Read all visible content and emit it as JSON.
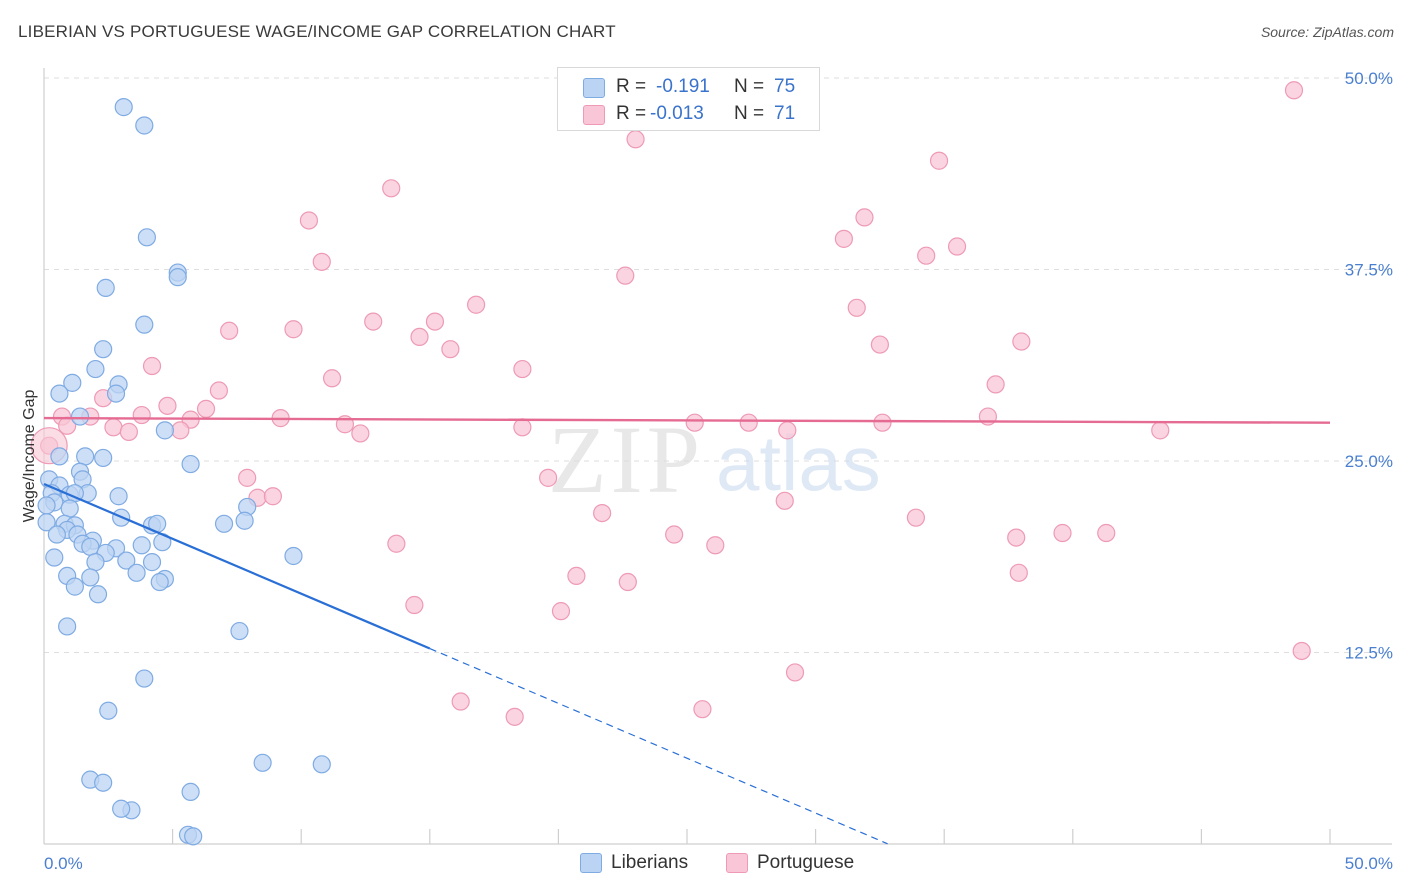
{
  "title": "LIBERIAN VS PORTUGUESE WAGE/INCOME GAP CORRELATION CHART",
  "source": "Source: ZipAtlas.com",
  "watermark": {
    "zip": "ZIP",
    "atlas": "atlas"
  },
  "legend": {
    "r_label": "R =",
    "n_label": "N =",
    "liberians": {
      "r": "-0.191",
      "n": "75"
    },
    "portuguese": {
      "r": "-0.013",
      "n": "71"
    }
  },
  "bottom_legend": {
    "liberians": "Liberians",
    "portuguese": "Portuguese"
  },
  "colors": {
    "liberians_fill": "#bcd4f3",
    "liberians_stroke": "#7fabe3",
    "liberians_line": "#2a6fd6",
    "portuguese_fill": "#f8c6d6",
    "portuguese_stroke": "#ee9ab5",
    "portuguese_line": "#e56b93",
    "tick_text": "#4a7fcf",
    "grid": "#dedede"
  },
  "chart_data": {
    "type": "scatter",
    "title": "LIBERIAN VS PORTUGUESE WAGE/INCOME GAP CORRELATION CHART",
    "xlabel": "",
    "ylabel": "Wage/Income Gap",
    "xlim": [
      0,
      50
    ],
    "ylim": [
      0,
      50
    ],
    "x_tick_labels": [
      "0.0%",
      "50.0%"
    ],
    "y_ticks": [
      12.5,
      25.0,
      37.5,
      50.0
    ],
    "y_tick_labels": [
      "12.5%",
      "25.0%",
      "37.5%",
      "50.0%"
    ],
    "grid": true,
    "series": [
      {
        "name": "Liberians",
        "r": -0.191,
        "n": 75,
        "trend": {
          "x0": 0,
          "y0": 23.5,
          "x_solid_end": 15,
          "x_end": 32.8,
          "slope": -0.716
        },
        "points": [
          [
            3.1,
            48.1
          ],
          [
            3.9,
            46.9
          ],
          [
            4.0,
            39.6
          ],
          [
            5.2,
            37.3
          ],
          [
            5.2,
            37.0
          ],
          [
            2.4,
            36.3
          ],
          [
            3.9,
            33.9
          ],
          [
            2.3,
            32.3
          ],
          [
            2.0,
            31.0
          ],
          [
            1.1,
            30.1
          ],
          [
            2.9,
            30.0
          ],
          [
            2.8,
            29.4
          ],
          [
            0.6,
            29.4
          ],
          [
            1.4,
            27.9
          ],
          [
            4.7,
            27.0
          ],
          [
            0.6,
            25.3
          ],
          [
            1.6,
            25.3
          ],
          [
            2.3,
            25.2
          ],
          [
            5.7,
            24.8
          ],
          [
            1.4,
            24.3
          ],
          [
            1.5,
            23.8
          ],
          [
            0.2,
            23.8
          ],
          [
            0.6,
            23.4
          ],
          [
            0.3,
            22.9
          ],
          [
            1.7,
            22.9
          ],
          [
            1.0,
            22.8
          ],
          [
            1.2,
            22.9
          ],
          [
            2.9,
            22.7
          ],
          [
            0.4,
            22.3
          ],
          [
            0.1,
            22.1
          ],
          [
            1.0,
            21.9
          ],
          [
            7.9,
            22.0
          ],
          [
            3.0,
            21.3
          ],
          [
            7.8,
            21.1
          ],
          [
            0.1,
            21.0
          ],
          [
            0.8,
            20.9
          ],
          [
            1.2,
            20.8
          ],
          [
            7.0,
            20.9
          ],
          [
            4.2,
            20.8
          ],
          [
            4.4,
            20.9
          ],
          [
            0.9,
            20.5
          ],
          [
            0.5,
            20.2
          ],
          [
            1.3,
            20.2
          ],
          [
            1.9,
            19.8
          ],
          [
            1.5,
            19.6
          ],
          [
            1.8,
            19.4
          ],
          [
            4.6,
            19.7
          ],
          [
            3.8,
            19.5
          ],
          [
            2.8,
            19.3
          ],
          [
            2.4,
            19.0
          ],
          [
            9.7,
            18.8
          ],
          [
            0.4,
            18.7
          ],
          [
            2.0,
            18.4
          ],
          [
            3.2,
            18.5
          ],
          [
            4.2,
            18.4
          ],
          [
            3.6,
            17.7
          ],
          [
            0.9,
            17.5
          ],
          [
            1.8,
            17.4
          ],
          [
            4.7,
            17.3
          ],
          [
            4.5,
            17.1
          ],
          [
            1.2,
            16.8
          ],
          [
            2.1,
            16.3
          ],
          [
            0.9,
            14.2
          ],
          [
            7.6,
            13.9
          ],
          [
            3.9,
            10.8
          ],
          [
            2.5,
            8.7
          ],
          [
            8.5,
            5.3
          ],
          [
            10.8,
            5.2
          ],
          [
            1.8,
            4.2
          ],
          [
            2.3,
            4.0
          ],
          [
            5.7,
            3.4
          ],
          [
            3.4,
            2.2
          ],
          [
            5.6,
            0.6
          ],
          [
            5.8,
            0.5
          ],
          [
            3.0,
            2.3
          ]
        ]
      },
      {
        "name": "Portuguese",
        "r": -0.013,
        "n": 71,
        "trend": {
          "x0": 0,
          "y0": 27.8,
          "x_end": 50,
          "y_end": 27.5
        },
        "points": [
          [
            48.6,
            49.2
          ],
          [
            23.0,
            46.0
          ],
          [
            34.8,
            44.6
          ],
          [
            13.5,
            42.8
          ],
          [
            10.3,
            40.7
          ],
          [
            31.9,
            40.9
          ],
          [
            31.1,
            39.5
          ],
          [
            35.5,
            39.0
          ],
          [
            34.3,
            38.4
          ],
          [
            10.8,
            38.0
          ],
          [
            22.6,
            37.1
          ],
          [
            16.8,
            35.2
          ],
          [
            31.6,
            35.0
          ],
          [
            12.8,
            34.1
          ],
          [
            15.2,
            34.1
          ],
          [
            7.2,
            33.5
          ],
          [
            9.7,
            33.6
          ],
          [
            14.6,
            33.1
          ],
          [
            38.0,
            32.8
          ],
          [
            32.5,
            32.6
          ],
          [
            15.8,
            32.3
          ],
          [
            4.2,
            31.2
          ],
          [
            18.6,
            31.0
          ],
          [
            11.2,
            30.4
          ],
          [
            37.0,
            30.0
          ],
          [
            6.8,
            29.6
          ],
          [
            2.3,
            29.1
          ],
          [
            4.8,
            28.6
          ],
          [
            6.3,
            28.4
          ],
          [
            0.7,
            27.9
          ],
          [
            1.8,
            27.9
          ],
          [
            3.8,
            28.0
          ],
          [
            5.7,
            27.7
          ],
          [
            9.2,
            27.8
          ],
          [
            36.7,
            27.9
          ],
          [
            0.9,
            27.3
          ],
          [
            2.7,
            27.2
          ],
          [
            11.7,
            27.4
          ],
          [
            18.6,
            27.2
          ],
          [
            25.3,
            27.5
          ],
          [
            27.4,
            27.5
          ],
          [
            32.6,
            27.5
          ],
          [
            3.3,
            26.9
          ],
          [
            5.3,
            27.0
          ],
          [
            12.3,
            26.8
          ],
          [
            28.9,
            27.0
          ],
          [
            43.4,
            27.0
          ],
          [
            0.2,
            26.0
          ],
          [
            7.9,
            23.9
          ],
          [
            19.6,
            23.9
          ],
          [
            8.3,
            22.6
          ],
          [
            8.9,
            22.7
          ],
          [
            28.8,
            22.4
          ],
          [
            21.7,
            21.6
          ],
          [
            33.9,
            21.3
          ],
          [
            24.5,
            20.2
          ],
          [
            39.6,
            20.3
          ],
          [
            41.3,
            20.3
          ],
          [
            37.8,
            20.0
          ],
          [
            13.7,
            19.6
          ],
          [
            26.1,
            19.5
          ],
          [
            20.7,
            17.5
          ],
          [
            22.7,
            17.1
          ],
          [
            37.9,
            17.7
          ],
          [
            14.4,
            15.6
          ],
          [
            20.1,
            15.2
          ],
          [
            48.9,
            12.6
          ],
          [
            29.2,
            11.2
          ],
          [
            16.2,
            9.3
          ],
          [
            18.3,
            8.3
          ],
          [
            25.6,
            8.8
          ]
        ]
      }
    ]
  }
}
